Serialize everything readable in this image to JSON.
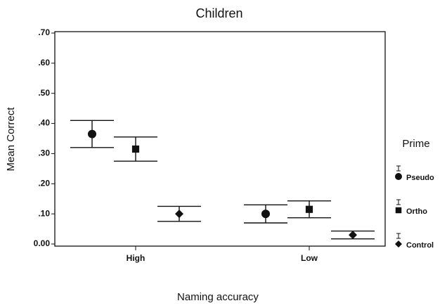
{
  "chart_data": {
    "type": "errorbar",
    "title": "Children",
    "x_label": "Naming accuracy",
    "y_label": "Mean Correct",
    "legend_title": "Prime",
    "legend_position": "right",
    "categories": [
      "High",
      "Low"
    ],
    "series": [
      {
        "name": "Pseudo",
        "marker": "circle",
        "color": "#111",
        "values": [
          0.365,
          0.1
        ],
        "errors": [
          0.045,
          0.03
        ]
      },
      {
        "name": "Ortho",
        "marker": "square",
        "color": "#111",
        "values": [
          0.315,
          0.115
        ],
        "errors": [
          0.04,
          0.028
        ]
      },
      {
        "name": "Control",
        "marker": "diamond",
        "color": "#111",
        "values": [
          0.1,
          0.03
        ],
        "errors": [
          0.025,
          0.013
        ]
      }
    ],
    "ylim": [
      0,
      0.7
    ],
    "yticks": [
      {
        "value": 0,
        "label": "0.00"
      },
      {
        "value": 0.1,
        "label": ".10"
      },
      {
        "value": 0.2,
        "label": ".20"
      },
      {
        "value": 0.3,
        "label": ".30"
      },
      {
        "value": 0.4,
        "label": ".40"
      },
      {
        "value": 0.5,
        "label": ".50"
      },
      {
        "value": 0.6,
        "label": ".60"
      },
      {
        "value": 0.7,
        "label": ".70"
      }
    ]
  }
}
